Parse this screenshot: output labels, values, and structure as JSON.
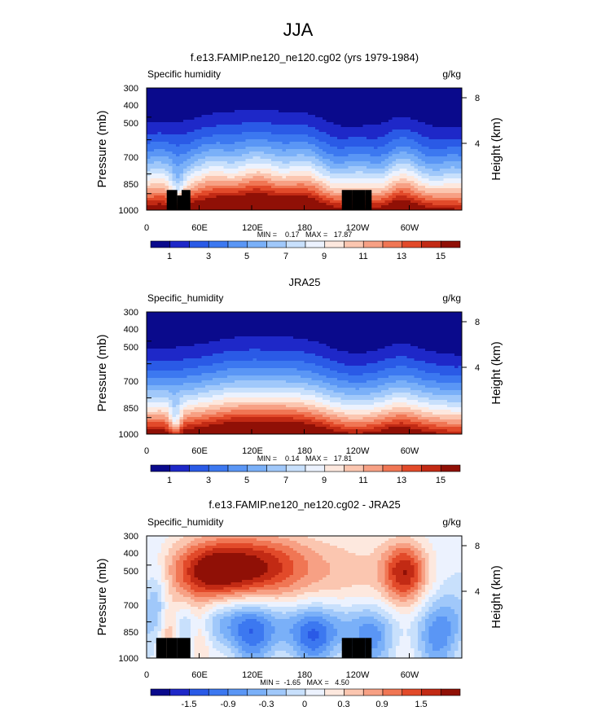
{
  "page_title": "JJA",
  "colors": {
    "seq": [
      "#0a0a8c",
      "#1e28c8",
      "#2a5ae6",
      "#3c78f0",
      "#5a96f5",
      "#7ab0f8",
      "#a0c8fa",
      "#c8e0fc",
      "#ecf2fe",
      "#fde8de",
      "#fbc6b0",
      "#f7a084",
      "#f07654",
      "#e24a2a",
      "#c22a14",
      "#901006"
    ],
    "div": [
      "#0a0a8c",
      "#1e28c8",
      "#2a5ae6",
      "#3c78f0",
      "#5a96f5",
      "#7ab0f8",
      "#a0c8fa",
      "#c8e0fc",
      "#ecf2fe",
      "#fde8de",
      "#fbc6b0",
      "#f7a084",
      "#f07654",
      "#e24a2a",
      "#c22a14",
      "#901006"
    ],
    "terrain": "#000000"
  },
  "chart_data": [
    {
      "type": "heatmap",
      "title": "f.e13.FAMIP.ne120_ne120.cg02 (yrs 1979-1984)",
      "left_label": "Specific humidity",
      "right_label": "g/kg",
      "ylabel": "Pressure (mb)",
      "y2label": "Height (km)",
      "y_ticks": [
        "300",
        "400",
        "500",
        "700",
        "850",
        "1000"
      ],
      "y2_ticks": [
        "8",
        "4"
      ],
      "x_ticks": [
        "0",
        "60E",
        "120E",
        "180",
        "120W",
        "60W"
      ],
      "stats": "MIN =    0.17   MAX =   17.87",
      "colorbar_labels": [
        "1",
        "3",
        "5",
        "7",
        "9",
        "11",
        "13",
        "15"
      ],
      "color_levels": [
        0,
        1,
        2,
        3,
        4,
        5,
        6,
        7,
        8,
        9,
        10,
        11,
        12,
        13,
        14,
        15,
        16
      ],
      "ylim": [
        1000,
        300
      ],
      "xlim": [
        0,
        360
      ],
      "field": "model",
      "terrain": [
        [
          23,
          35,
          40
        ],
        [
          35,
          40,
          30
        ],
        [
          40,
          50,
          40
        ],
        [
          223,
          235,
          40
        ],
        [
          235,
          250,
          40
        ],
        [
          250,
          257,
          40
        ]
      ]
    },
    {
      "type": "heatmap",
      "title": "JRA25",
      "left_label": "Specific_humidity",
      "right_label": "g/kg",
      "ylabel": "Pressure (mb)",
      "y2label": "Height (km)",
      "y_ticks": [
        "300",
        "400",
        "500",
        "700",
        "850",
        "1000"
      ],
      "y2_ticks": [
        "8",
        "4"
      ],
      "x_ticks": [
        "0",
        "60E",
        "120E",
        "180",
        "120W",
        "60W"
      ],
      "stats": "MIN =    0.14   MAX =   17.81",
      "colorbar_labels": [
        "1",
        "3",
        "5",
        "7",
        "9",
        "11",
        "13",
        "15"
      ],
      "color_levels": [
        0,
        1,
        2,
        3,
        4,
        5,
        6,
        7,
        8,
        9,
        10,
        11,
        12,
        13,
        14,
        15,
        16
      ],
      "ylim": [
        1000,
        300
      ],
      "xlim": [
        0,
        360
      ],
      "field": "obs",
      "terrain": []
    },
    {
      "type": "heatmap",
      "title": "f.e13.FAMIP.ne120_ne120.cg02 - JRA25",
      "left_label": "Specific_humidity",
      "right_label": "g/kg",
      "ylabel": "Pressure (mb)",
      "y2label": "Height (km)",
      "y_ticks": [
        "300",
        "400",
        "500",
        "700",
        "850",
        "1000"
      ],
      "y2_ticks": [
        "8",
        "4"
      ],
      "x_ticks": [
        "0",
        "60E",
        "120E",
        "180",
        "120W",
        "60W"
      ],
      "stats": "MIN =  -1.65   MAX =   4.50",
      "colorbar_labels": [
        "-1.5",
        "-0.9",
        "-0.3",
        "0",
        "0.3",
        "0.9",
        "1.5"
      ],
      "color_levels": [
        -2.4,
        -2.1,
        -1.8,
        -1.5,
        -1.2,
        -0.9,
        -0.6,
        -0.3,
        0,
        0.3,
        0.6,
        0.9,
        1.2,
        1.5,
        1.8,
        2.1,
        2.4
      ],
      "ylim": [
        1000,
        300
      ],
      "xlim": [
        0,
        360
      ],
      "field": "diff",
      "terrain": [
        [
          11,
          23,
          40
        ],
        [
          23,
          35,
          40
        ],
        [
          35,
          40,
          40
        ],
        [
          40,
          50,
          40
        ],
        [
          223,
          235,
          40
        ],
        [
          235,
          250,
          40
        ],
        [
          250,
          257,
          40
        ]
      ]
    }
  ]
}
